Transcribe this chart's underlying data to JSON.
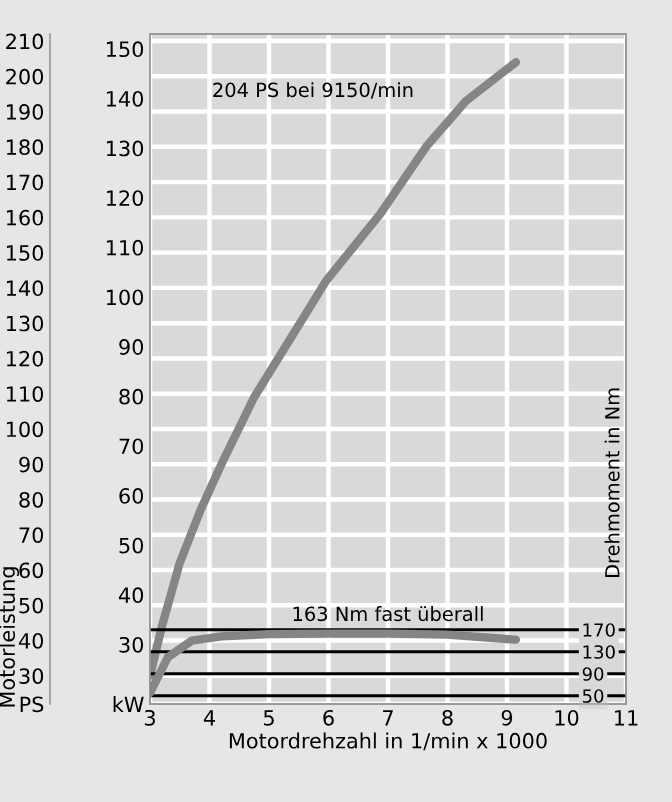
{
  "chart_data": {
    "type": "line",
    "xlabel": "Motordrehzahl in 1/min x 1000",
    "ylabel": "Motorleistung",
    "y2label": "Drehmoment in Nm",
    "xlim": [
      3,
      11
    ],
    "xticks": [
      3,
      4,
      5,
      6,
      7,
      8,
      9,
      10,
      11
    ],
    "ylim": [
      22,
      212
    ],
    "yticks": [
      {
        "value": 22,
        "label": "PS"
      },
      30,
      40,
      50,
      60,
      70,
      80,
      90,
      100,
      110,
      120,
      130,
      140,
      150,
      160,
      170,
      180,
      190,
      200,
      210
    ],
    "y3lim": [
      18,
      153
    ],
    "y3ticks": [
      {
        "value": 18,
        "label": "kW"
      },
      30,
      40,
      50,
      60,
      70,
      80,
      90,
      100,
      110,
      120,
      130,
      140,
      150
    ],
    "y2lim": [
      35,
      1253
    ],
    "y2ticks": [
      50,
      90,
      130,
      170
    ],
    "grid": true,
    "marker": "none",
    "line_style": "solid",
    "series": [
      {
        "color": "#858585",
        "x": [
          3.0,
          3.2,
          3.5,
          3.85,
          4.2,
          4.75,
          5.96,
          6.87,
          7.64,
          8.31,
          9.15
        ],
        "values": [
          30,
          44,
          62,
          77,
          90,
          109,
          142,
          161,
          180,
          193,
          204
        ]
      },
      {
        "color": "#858585",
        "axis": "y2",
        "x": [
          3.0,
          3.3,
          3.7,
          4.2,
          5.0,
          6.0,
          7.0,
          8.0,
          9.15
        ],
        "values": [
          55,
          120,
          150,
          158,
          162,
          163,
          163,
          161,
          152
        ]
      }
    ],
    "annotations": [
      "204 PS bei 9150/min",
      "163 Nm fast überall"
    ]
  }
}
